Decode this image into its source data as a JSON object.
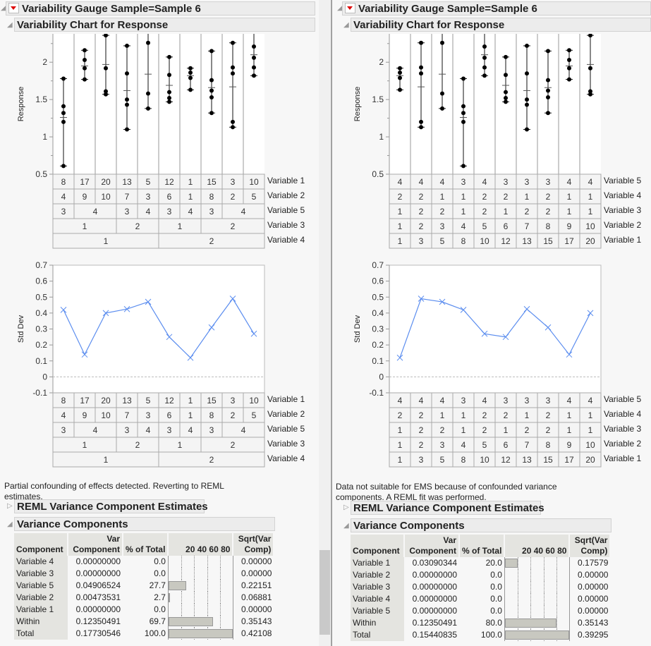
{
  "panels": [
    {
      "title": "Variability Gauge Sample=Sample 6",
      "chart_title": "Variability Chart for Response",
      "message": "Partial confounding of effects detected. Reverting to REML estimates.",
      "reml_title": "REML Variance Component Estimates",
      "vc_title": "Variance Components",
      "vc_headers": [
        "Component",
        "Var Component",
        "% of Total",
        "20 40 60 80",
        "Sqrt(Var Comp)"
      ],
      "vc_rows": [
        {
          "component": "Variable 4",
          "var": "0.00000000",
          "pct": "0.0",
          "sqrt": "0.00000"
        },
        {
          "component": "Variable 3",
          "var": "0.00000000",
          "pct": "0.0",
          "sqrt": "0.00000"
        },
        {
          "component": "Variable 5",
          "var": "0.04906524",
          "pct": "27.7",
          "sqrt": "0.22151"
        },
        {
          "component": "Variable 2",
          "var": "0.00473531",
          "pct": "2.7",
          "sqrt": "0.06881"
        },
        {
          "component": "Variable 1",
          "var": "0.00000000",
          "pct": "0.0",
          "sqrt": "0.00000"
        },
        {
          "component": "Within",
          "var": "0.12350491",
          "pct": "69.7",
          "sqrt": "0.35143"
        },
        {
          "component": "Total",
          "var": "0.17730546",
          "pct": "100.0",
          "sqrt": "0.42108"
        }
      ]
    },
    {
      "title": "Variability Gauge Sample=Sample 6",
      "chart_title": "Variability Chart for Response",
      "message": "Data not suitable for EMS because of confounded variance components. A REML fit was performed.",
      "reml_title": "REML Variance Component Estimates",
      "vc_title": "Variance Components",
      "vc_headers": [
        "Component",
        "Var Component",
        "% of Total",
        "20 40 60 80",
        "Sqrt(Var Comp)"
      ],
      "vc_rows": [
        {
          "component": "Variable 1",
          "var": "0.03090344",
          "pct": "20.0",
          "sqrt": "0.17579"
        },
        {
          "component": "Variable 2",
          "var": "0.00000000",
          "pct": "0.0",
          "sqrt": "0.00000"
        },
        {
          "component": "Variable 3",
          "var": "0.00000000",
          "pct": "0.0",
          "sqrt": "0.00000"
        },
        {
          "component": "Variable 4",
          "var": "0.00000000",
          "pct": "0.0",
          "sqrt": "0.00000"
        },
        {
          "component": "Variable 5",
          "var": "0.00000000",
          "pct": "0.0",
          "sqrt": "0.00000"
        },
        {
          "component": "Within",
          "var": "0.12350491",
          "pct": "80.0",
          "sqrt": "0.35143"
        },
        {
          "component": "Total",
          "var": "0.15440835",
          "pct": "100.0",
          "sqrt": "0.39295"
        }
      ]
    }
  ],
  "chart_data": [
    {
      "panel": 0,
      "type": "variability",
      "ylabel": "Response",
      "ylim": [
        0.5,
        2.38
      ],
      "yticks": [
        0.5,
        1,
        1.5,
        2
      ],
      "table_rows": [
        {
          "label": "Variable 1",
          "values": [
            "8",
            "17",
            "20",
            "13",
            "5",
            "12",
            "1",
            "15",
            "3",
            "10"
          ]
        },
        {
          "label": "Variable 2",
          "values": [
            "4",
            "9",
            "10",
            "7",
            "3",
            "6",
            "1",
            "8",
            "2",
            "5"
          ]
        },
        {
          "label": "Variable 5",
          "values": [
            "3",
            "4",
            "4",
            "3",
            "4",
            "3",
            "4",
            "3",
            "4",
            "4"
          ]
        },
        {
          "label": "Variable 3",
          "values": [
            "1",
            "1",
            "1",
            "2",
            "2",
            "1",
            "1",
            "2",
            "2",
            "2"
          ]
        },
        {
          "label": "Variable 4",
          "values": [
            "1",
            "1",
            "1",
            "1",
            "1",
            "2",
            "2",
            "2",
            "2",
            "2"
          ]
        }
      ],
      "points": [
        [
          1.78,
          1.41,
          1.32,
          1.2,
          0.61
        ],
        [
          2.16,
          2.03,
          1.92,
          1.77
        ],
        [
          2.36,
          1.92,
          1.61,
          1.57
        ],
        [
          2.22,
          1.85,
          1.5,
          1.43,
          1.1
        ],
        [
          2.45,
          2.26,
          1.58,
          1.38
        ],
        [
          2.07,
          1.83,
          1.6,
          1.52,
          1.47
        ],
        [
          1.92,
          1.86,
          1.79,
          1.63
        ],
        [
          2.15,
          1.76,
          1.62,
          1.53,
          1.32
        ],
        [
          2.26,
          1.93,
          1.85,
          1.2,
          1.13
        ],
        [
          2.45,
          2.21,
          2.06,
          1.93,
          1.82
        ]
      ],
      "means": [
        1.26,
        1.95,
        1.97,
        1.62,
        1.84,
        1.69,
        1.82,
        1.66,
        1.67,
        2.1
      ]
    },
    {
      "panel": 0,
      "type": "line",
      "ylabel": "Std Dev",
      "ylim": [
        -0.1,
        0.7
      ],
      "yticks": [
        -0.1,
        0,
        0.1,
        0.2,
        0.3,
        0.4,
        0.5,
        0.6,
        0.7
      ],
      "color": "#5b8def",
      "table_rows": [
        {
          "label": "Variable 1",
          "values": [
            "8",
            "17",
            "20",
            "13",
            "5",
            "12",
            "1",
            "15",
            "3",
            "10"
          ]
        },
        {
          "label": "Variable 2",
          "values": [
            "4",
            "9",
            "10",
            "7",
            "3",
            "6",
            "1",
            "8",
            "2",
            "5"
          ]
        },
        {
          "label": "Variable 5",
          "values": [
            "3",
            "4",
            "4",
            "3",
            "4",
            "3",
            "4",
            "3",
            "4",
            "4"
          ]
        },
        {
          "label": "Variable 3",
          "values": [
            "1",
            "1",
            "1",
            "2",
            "2",
            "1",
            "1",
            "2",
            "2",
            "2"
          ]
        },
        {
          "label": "Variable 4",
          "values": [
            "1",
            "1",
            "1",
            "1",
            "1",
            "2",
            "2",
            "2",
            "2",
            "2"
          ]
        }
      ],
      "values": [
        0.42,
        0.14,
        0.4,
        0.425,
        0.47,
        0.25,
        0.12,
        0.31,
        0.49,
        0.27
      ]
    },
    {
      "panel": 1,
      "type": "variability",
      "ylabel": "Response",
      "ylim": [
        0.5,
        2.38
      ],
      "yticks": [
        0.5,
        1,
        1.5,
        2
      ],
      "table_rows": [
        {
          "label": "Variable 5",
          "values": [
            "4",
            "4",
            "4",
            "3",
            "4",
            "3",
            "3",
            "3",
            "4",
            "4"
          ]
        },
        {
          "label": "Variable 4",
          "values": [
            "2",
            "2",
            "1",
            "1",
            "2",
            "2",
            "1",
            "2",
            "1",
            "1"
          ]
        },
        {
          "label": "Variable 3",
          "values": [
            "1",
            "2",
            "2",
            "1",
            "2",
            "1",
            "2",
            "2",
            "1",
            "1"
          ]
        },
        {
          "label": "Variable 2",
          "values": [
            "1",
            "2",
            "3",
            "4",
            "5",
            "6",
            "7",
            "8",
            "9",
            "10"
          ]
        },
        {
          "label": "Variable 1",
          "values": [
            "1",
            "3",
            "5",
            "8",
            "10",
            "12",
            "13",
            "15",
            "17",
            "20"
          ]
        }
      ],
      "points": [
        [
          1.92,
          1.86,
          1.79,
          1.63
        ],
        [
          2.26,
          1.93,
          1.85,
          1.2,
          1.13
        ],
        [
          2.45,
          2.26,
          1.58,
          1.38
        ],
        [
          1.78,
          1.41,
          1.32,
          1.2,
          0.61
        ],
        [
          2.45,
          2.21,
          2.06,
          1.93,
          1.82
        ],
        [
          2.07,
          1.83,
          1.6,
          1.52,
          1.47
        ],
        [
          2.22,
          1.85,
          1.5,
          1.43,
          1.1
        ],
        [
          2.15,
          1.76,
          1.62,
          1.53,
          1.32
        ],
        [
          2.16,
          2.03,
          1.92,
          1.77
        ],
        [
          2.36,
          1.92,
          1.61,
          1.57
        ]
      ],
      "means": [
        1.82,
        1.67,
        1.84,
        1.26,
        2.1,
        1.69,
        1.62,
        1.66,
        1.95,
        1.97
      ]
    },
    {
      "panel": 1,
      "type": "line",
      "ylabel": "Std Dev",
      "ylim": [
        -0.1,
        0.7
      ],
      "yticks": [
        -0.1,
        0,
        0.1,
        0.2,
        0.3,
        0.4,
        0.5,
        0.6,
        0.7
      ],
      "color": "#5b8def",
      "table_rows": [
        {
          "label": "Variable 5",
          "values": [
            "4",
            "4",
            "4",
            "3",
            "4",
            "3",
            "3",
            "3",
            "4",
            "4"
          ]
        },
        {
          "label": "Variable 4",
          "values": [
            "2",
            "2",
            "1",
            "1",
            "2",
            "2",
            "1",
            "2",
            "1",
            "1"
          ]
        },
        {
          "label": "Variable 3",
          "values": [
            "1",
            "2",
            "2",
            "1",
            "2",
            "1",
            "2",
            "2",
            "1",
            "1"
          ]
        },
        {
          "label": "Variable 2",
          "values": [
            "1",
            "2",
            "3",
            "4",
            "5",
            "6",
            "7",
            "8",
            "9",
            "10"
          ]
        },
        {
          "label": "Variable 1",
          "values": [
            "1",
            "3",
            "5",
            "8",
            "10",
            "12",
            "13",
            "15",
            "17",
            "20"
          ]
        }
      ],
      "values": [
        0.12,
        0.49,
        0.47,
        0.42,
        0.27,
        0.25,
        0.425,
        0.31,
        0.14,
        0.4
      ]
    }
  ]
}
